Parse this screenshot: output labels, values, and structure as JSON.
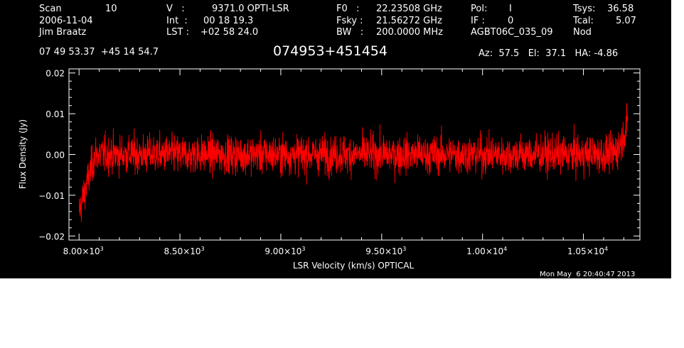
{
  "header": {
    "col1": {
      "scan_label": "Scan",
      "scan_value": "10",
      "date": "2006-11-04",
      "observer": "Jim Braatz"
    },
    "col2": {
      "v_label": "V   :",
      "v_value": "9371.0 OPTI-LSR",
      "int_label": "Int  :",
      "int_value": "00 18 19.3",
      "lst_label": "LST :",
      "lst_value": "+02 58 24.0"
    },
    "col3": {
      "f0_label": "F0   :",
      "f0_value": "22.23508 GHz",
      "fsky_label": "Fsky :",
      "fsky_value": "21.56272 GHz",
      "bw_label": "BW   :",
      "bw_value": "200.0000 MHz"
    },
    "col4": {
      "pol_label": "Pol:",
      "pol_value": "I",
      "if_label": "IF :",
      "if_value": "0",
      "project": "AGBT06C_035_09"
    },
    "col5": {
      "tsys_label": "Tsys:",
      "tsys_value": "36.58",
      "tcal_label": "Tcal:",
      "tcal_value": "5.07",
      "mode": "Nod"
    },
    "coords": "07 49 53.37  +45 14 54.7",
    "source": "074953+451454",
    "pointing": "Az:  57.5   El:  37.1   HA: -4.86",
    "timestamp": "Mon May  6 20:40:47 2013"
  },
  "chart_data": {
    "type": "line",
    "title": "074953+451454",
    "xlabel": "LSR Velocity (km/s) OPTICAL",
    "ylabel": "Flux Density (Jy)",
    "xlim": [
      7950,
      10780
    ],
    "ylim": [
      -0.021,
      0.021
    ],
    "x_ticks": [
      {
        "value": 8000,
        "mantissa": "8.00",
        "exp": "3"
      },
      {
        "value": 8500,
        "mantissa": "8.50",
        "exp": "3"
      },
      {
        "value": 9000,
        "mantissa": "9.00",
        "exp": "3"
      },
      {
        "value": 9500,
        "mantissa": "9.50",
        "exp": "3"
      },
      {
        "value": 10000,
        "mantissa": "1.00",
        "exp": "4"
      },
      {
        "value": 10500,
        "mantissa": "1.05",
        "exp": "4"
      }
    ],
    "y_ticks": [
      {
        "value": 0.02,
        "label": "0.02"
      },
      {
        "value": 0.01,
        "label": "0.01"
      },
      {
        "value": 0.0,
        "label": "0.00"
      },
      {
        "value": -0.01,
        "label": "−0.01"
      },
      {
        "value": -0.02,
        "label": "−0.02"
      }
    ],
    "series": [
      {
        "color": "#ff0000",
        "x_start": 8000,
        "x_end": 10720,
        "baseline": 0.0,
        "noise_rms": 0.0033,
        "edge_low": {
          "x": 8005,
          "y": -0.0165
        },
        "edge_high": {
          "x": 10720,
          "y": 0.0135
        }
      }
    ],
    "grid": false
  }
}
